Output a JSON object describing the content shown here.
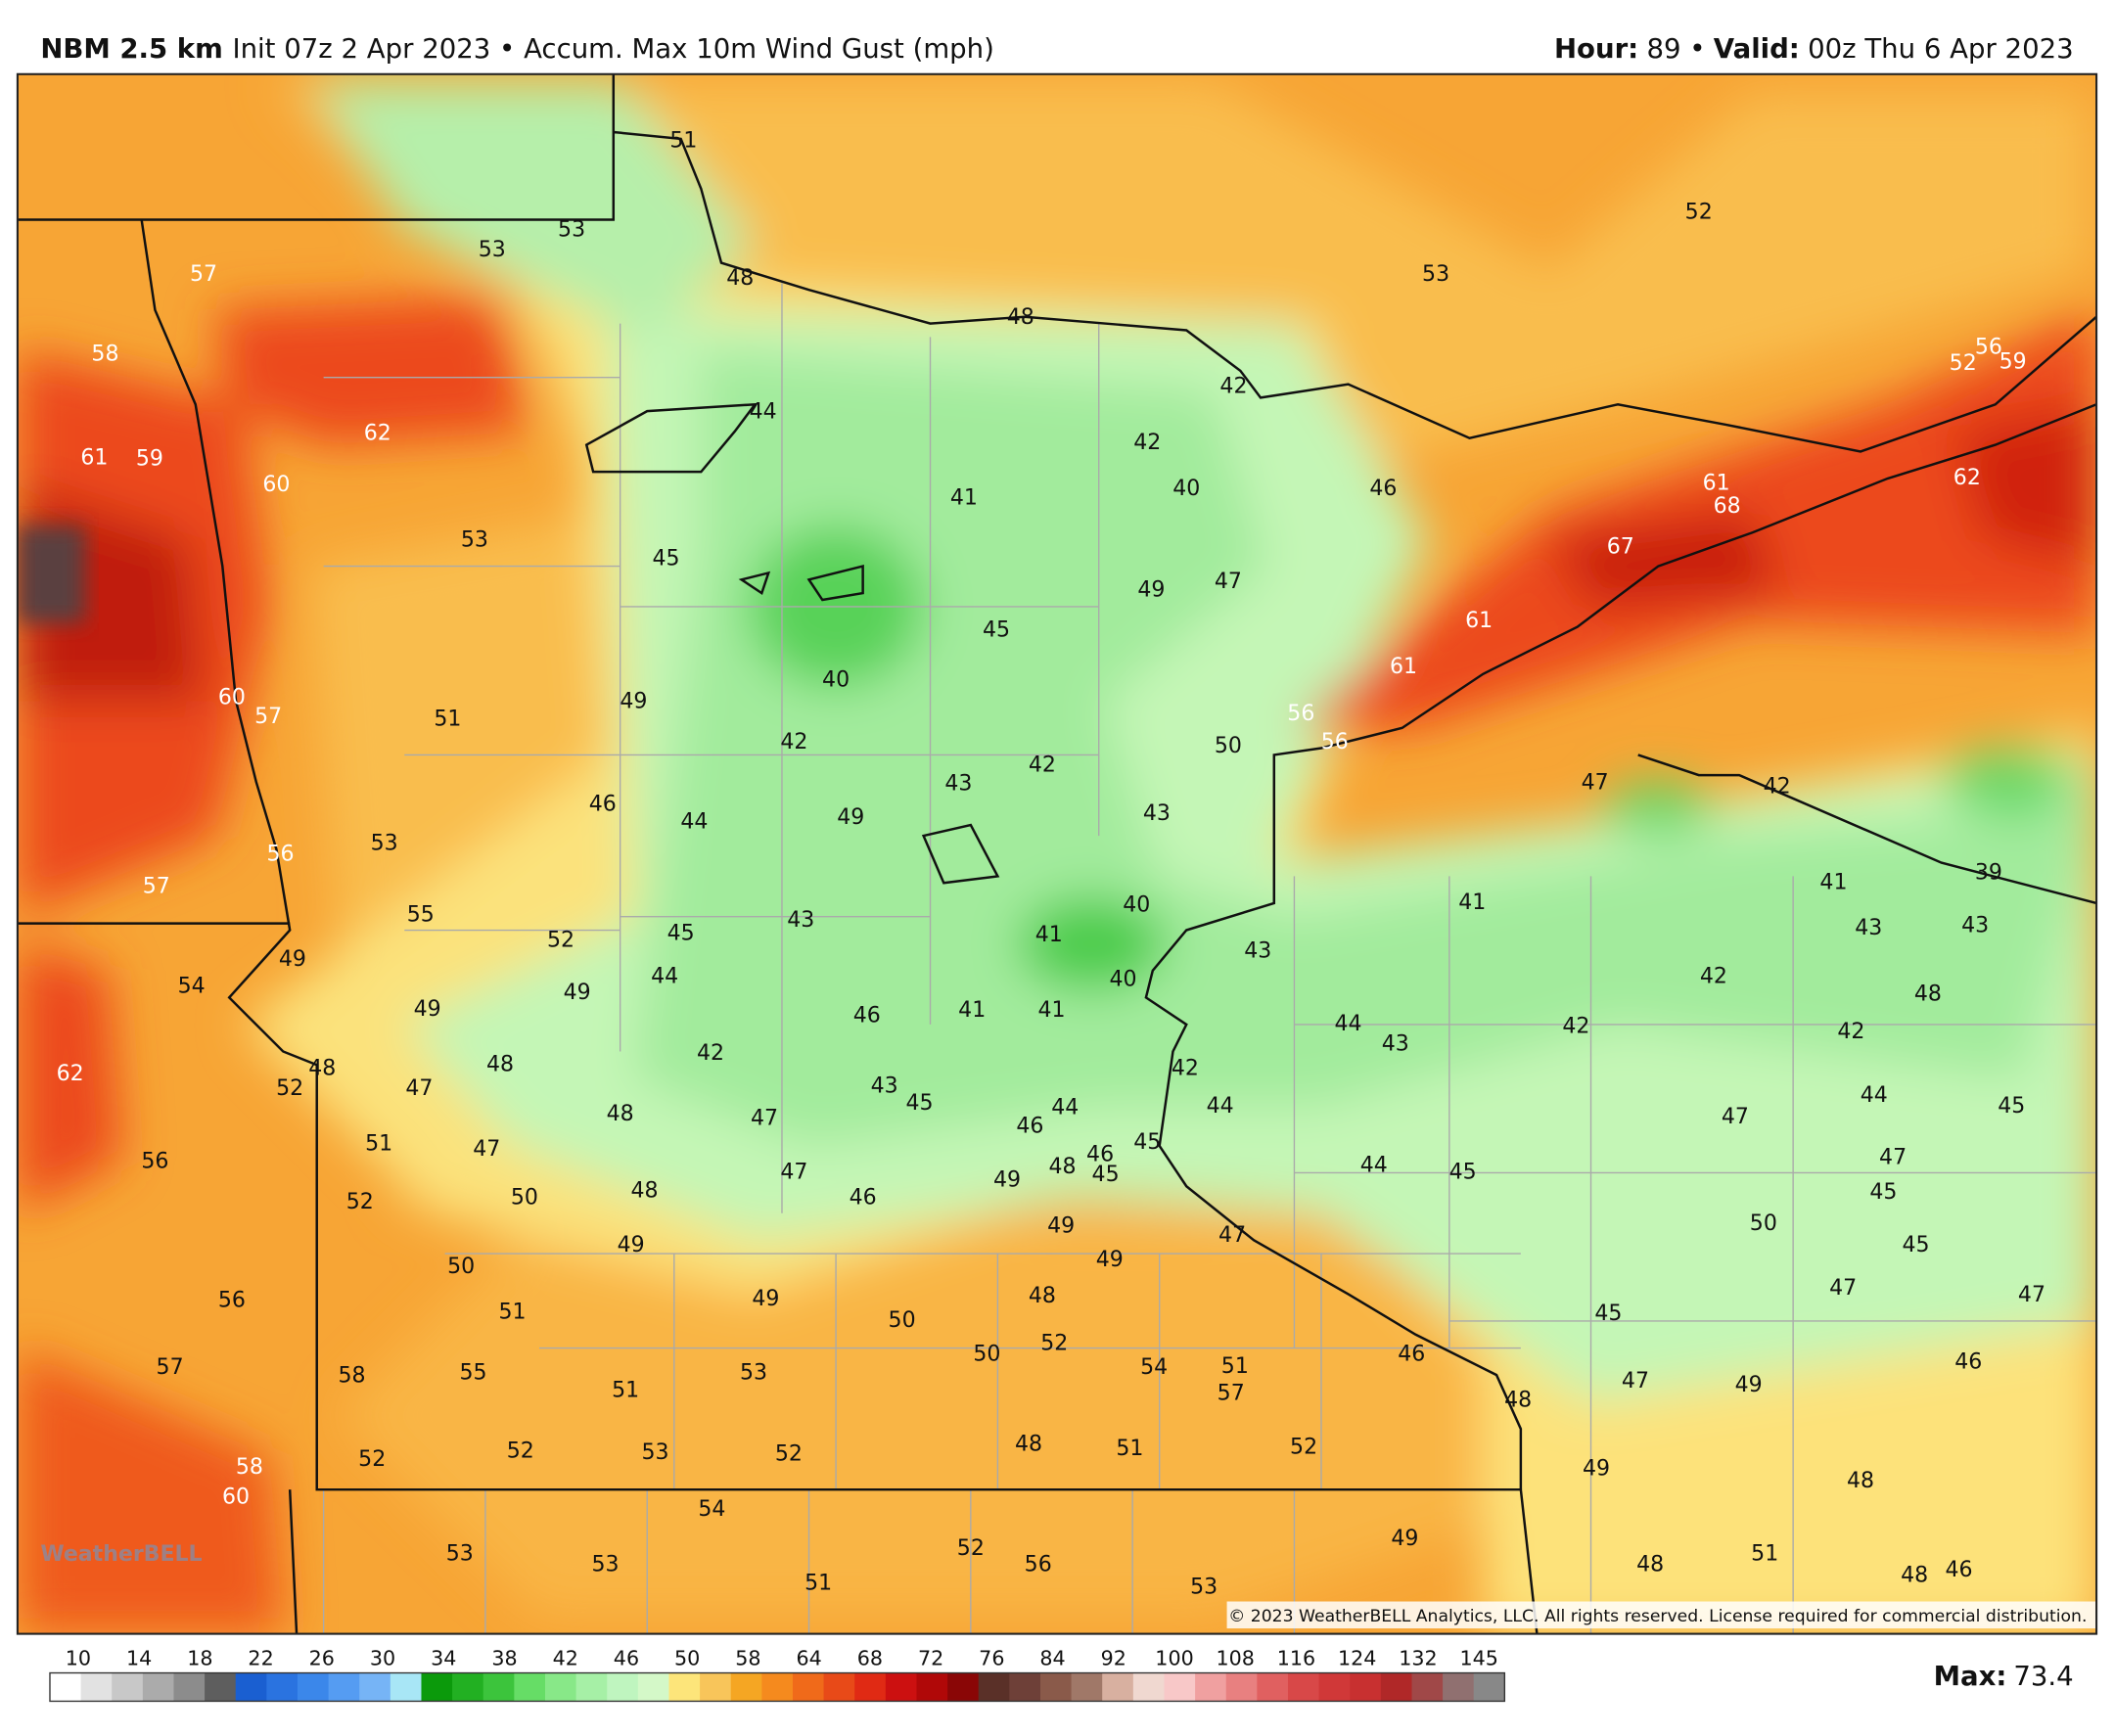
{
  "header": {
    "title_bold": "NBM 2.5 km",
    "title_rest": "Init 07z 2 Apr 2023 • Accum. Max 10m Wind Gust (mph)",
    "right": [
      "Hour:",
      "89 •",
      "Valid:",
      "00z Thu 6 Apr 2023"
    ]
  },
  "map_labels": [
    51,
    57,
    53,
    53,
    48,
    58,
    62,
    61,
    59,
    60,
    53,
    44,
    45,
    41,
    42,
    40,
    46,
    42,
    48,
    52,
    53,
    52,
    56,
    59,
    61,
    68,
    67,
    62,
    49,
    47,
    45,
    40,
    49,
    51,
    60,
    57,
    61,
    61,
    56,
    56,
    50,
    42,
    42,
    43,
    43,
    49,
    44,
    46,
    53,
    56,
    57,
    47,
    42,
    41,
    41,
    39,
    43,
    43,
    40,
    41,
    40,
    43,
    45,
    52,
    55,
    49,
    54,
    44,
    49,
    49,
    43,
    42,
    48,
    46,
    41,
    41,
    42,
    44,
    43,
    42,
    42,
    62,
    48,
    52,
    47,
    48,
    42,
    43,
    45,
    48,
    47,
    44,
    45,
    47,
    44,
    44,
    46,
    45,
    46,
    45,
    48,
    51,
    47,
    56,
    44,
    45,
    47,
    45,
    47,
    46,
    49,
    48,
    50,
    52,
    50,
    49,
    47,
    49,
    45,
    49,
    50,
    47,
    47,
    56,
    49,
    48,
    51,
    45,
    50,
    52,
    50,
    46,
    46,
    57,
    58,
    55,
    53,
    54,
    51,
    57,
    51,
    47,
    49,
    48,
    48,
    51,
    52,
    52,
    53,
    52,
    52,
    49,
    58,
    60,
    48,
    54,
    49,
    52,
    53,
    56,
    53,
    51,
    48,
    46,
    48,
    51,
    53
  ],
  "watermark": "WeatherBELL",
  "copyright": "© 2023 WeatherBELL Analytics, LLC. All rights reserved. License required for commercial distribution.",
  "colorbar": {
    "ticks": [
      10,
      14,
      18,
      22,
      26,
      30,
      34,
      38,
      42,
      46,
      50,
      58,
      64,
      68,
      72,
      76,
      84,
      92,
      100,
      108,
      116,
      124,
      132,
      145
    ],
    "colors": [
      "#ffffff",
      "#e2e2e2",
      "#c8c8c8",
      "#ababab",
      "#8c8c8c",
      "#5e5e5e",
      "#1a5fd1",
      "#2a73e0",
      "#3b87ea",
      "#559cf2",
      "#76b4f6",
      "#a8e6f6",
      "#0b9a0b",
      "#22b022",
      "#3cc43c",
      "#66dd66",
      "#88e888",
      "#a6f0a6",
      "#bff5bf",
      "#d4f8c8",
      "#fde57a",
      "#f8c55a",
      "#f5a623",
      "#f58a1e",
      "#f06a1a",
      "#e84a18",
      "#e02a14",
      "#cc1010",
      "#b00808",
      "#8a0606",
      "#5a3028",
      "#6e4038",
      "#8a5a4a",
      "#a07868",
      "#d8b0a0",
      "#f0d8d0",
      "#f8c8c8",
      "#f0a0a0",
      "#e88080",
      "#e06060",
      "#d84848",
      "#d03838",
      "#c83030",
      "#b02828",
      "#a04848",
      "#907070",
      "#888888"
    ]
  },
  "max": {
    "label": "Max:",
    "value": 73.4
  }
}
